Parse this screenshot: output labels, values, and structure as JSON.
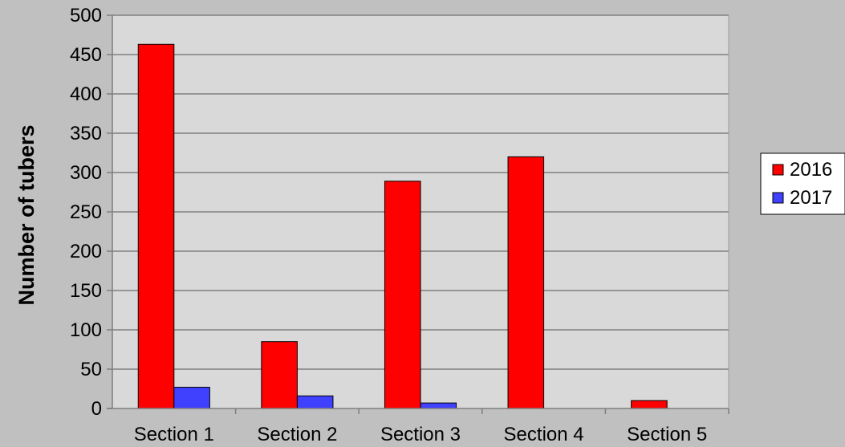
{
  "chart_data": {
    "type": "bar",
    "title": "",
    "xlabel": "",
    "ylabel": "Number of tubers",
    "ylim": [
      0,
      500
    ],
    "yticks": [
      0,
      50,
      100,
      150,
      200,
      250,
      300,
      350,
      400,
      450,
      500
    ],
    "categories": [
      "Section 1",
      "Section 2",
      "Section 3",
      "Section 4",
      "Section 5"
    ],
    "series": [
      {
        "name": "2016",
        "color": "#ff0000",
        "values": [
          463,
          85,
          289,
          320,
          10
        ]
      },
      {
        "name": "2017",
        "color": "#4040ff",
        "values": [
          27,
          16,
          7,
          0,
          0
        ]
      }
    ],
    "grid": true,
    "legend_position": "right",
    "plot_background": "#d9d9d9",
    "page_background": "#c0c0c0"
  }
}
